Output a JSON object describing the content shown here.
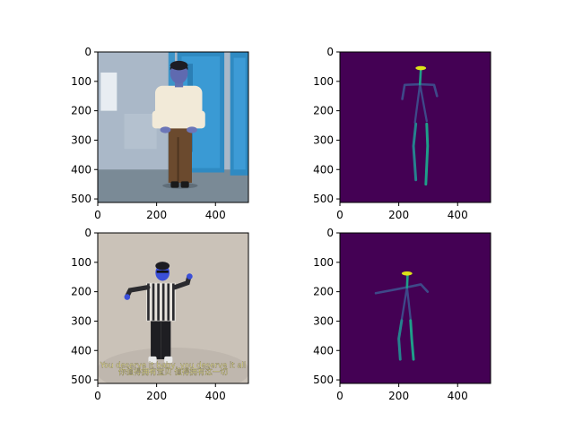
{
  "chart_data": [
    {
      "type": "image",
      "kind": "photo",
      "xlim": [
        0,
        512
      ],
      "ylim": [
        512,
        0
      ],
      "x_ticks": [
        0,
        200,
        400
      ],
      "y_ticks": [
        0,
        100,
        200,
        300,
        400,
        500
      ],
      "colors": {
        "wall": "#aab8c8",
        "door": "#2a86c0",
        "floor": "#7a8a96",
        "shirt": "#f2ead8",
        "pants": "#6b4a2e"
      }
    },
    {
      "type": "image",
      "kind": "pose",
      "xlim": [
        0,
        512
      ],
      "ylim": [
        512,
        0
      ],
      "x_ticks": [
        0,
        200,
        400
      ],
      "y_ticks": [
        0,
        100,
        200,
        300,
        400,
        500
      ],
      "colors": {
        "background": "#440154",
        "limb": "#26828e",
        "limb_light": "#1f9e89",
        "head": "#dde318",
        "torso": "#3e4989"
      }
    },
    {
      "type": "image",
      "kind": "photo",
      "xlim": [
        0,
        512
      ],
      "ylim": [
        512,
        0
      ],
      "x_ticks": [
        0,
        200,
        400
      ],
      "y_ticks": [
        0,
        100,
        200,
        300,
        400,
        500
      ],
      "subtitle_lines": [
        "You deserve it baby, you deserve it all",
        "你值得拥有宝贝 值得拥有这一切"
      ],
      "colors": {
        "backdrop": "#cfc8bf",
        "stripe_dark": "#2a2a2e",
        "stripe_light": "#e6e2dc",
        "skin": "#3b4fd8"
      }
    },
    {
      "type": "image",
      "kind": "pose",
      "xlim": [
        0,
        512
      ],
      "ylim": [
        512,
        0
      ],
      "x_ticks": [
        0,
        200,
        400
      ],
      "y_ticks": [
        0,
        100,
        200,
        300,
        400,
        500
      ],
      "colors": {
        "background": "#440154",
        "limb": "#26828e",
        "limb_light": "#1f9e89",
        "head": "#dde318",
        "torso": "#3e4989"
      }
    }
  ]
}
